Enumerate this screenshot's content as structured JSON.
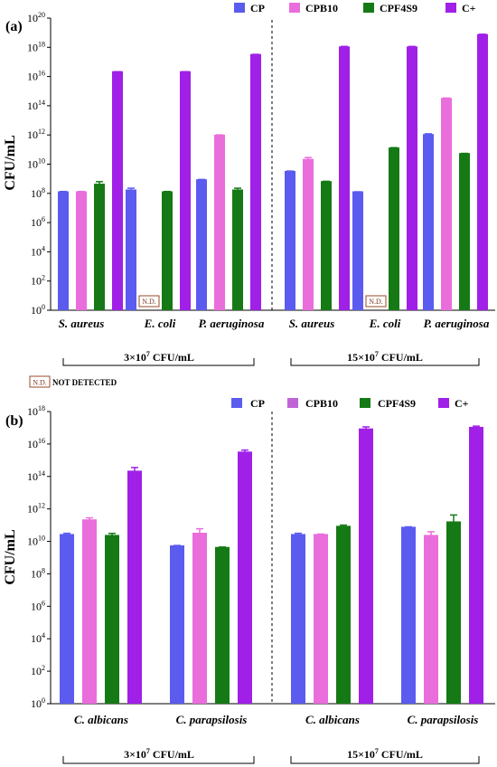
{
  "colors": {
    "CP": "#5b5bef",
    "CPB10": "#ea6ddc",
    "CPF4S9": "#157a15",
    "C+": "#a020e8",
    "nd_border": "#9a4a2a"
  },
  "nd_label": "N.D.",
  "nd_legend": "NOT DETECTED",
  "chart_data": [
    {
      "type": "bar",
      "panel_label": "(a)",
      "ylabel": "CFU/mL",
      "yscale": "log10",
      "ylim": [
        1,
        1e+20
      ],
      "yticks": [
        "10^0",
        "10^2",
        "10^4",
        "10^6",
        "10^8",
        "10^10",
        "10^12",
        "10^14",
        "10^16",
        "10^18",
        "10^20"
      ],
      "legend": [
        "CP",
        "CPB10",
        "CPF4S9",
        "C+"
      ],
      "legend_position": "top-right",
      "groups": [
        {
          "label": "3×10^7 CFU/mL",
          "categories": [
            "S. aureus",
            "E. coli",
            "P. aeruginosa"
          ]
        },
        {
          "label": "15×10^7 CFU/mL",
          "categories": [
            "S. aureus",
            "E. coli",
            "P. aeruginosa"
          ]
        }
      ],
      "categories": [
        "S. aureus",
        "E. coli",
        "P. aeruginosa",
        "S. aureus",
        "E. coli",
        "P. aeruginosa"
      ],
      "series": [
        {
          "name": "CP",
          "values": [
            120000000.0,
            160000000.0,
            800000000.0,
            3000000000.0,
            120000000.0,
            1000000000000.0
          ],
          "err_log": [
            0.05,
            0.15,
            0.05,
            0.05,
            0.03,
            0.08
          ]
        },
        {
          "name": "CPB10",
          "values": [
            120000000.0,
            null,
            900000000000.0,
            20000000000.0,
            null,
            300000000000000.0
          ],
          "err_log": [
            0.05,
            0,
            0.05,
            0.15,
            0,
            0.05
          ]
        },
        {
          "name": "CPF4S9",
          "values": [
            400000000.0,
            120000000.0,
            160000000.0,
            600000000.0,
            120000000000.0,
            50000000000.0
          ],
          "err_log": [
            0.2,
            0.05,
            0.15,
            0.05,
            0.05,
            0.04
          ]
        },
        {
          "name": "C+",
          "values": [
            2e+16,
            2e+16,
            3e+17,
            1e+18,
            1e+18,
            7e+18
          ],
          "err_log": [
            0.03,
            0.03,
            0.04,
            0.06,
            0.06,
            0.05
          ]
        }
      ],
      "not_detected": [
        {
          "series": "CPB10",
          "category_index": 1
        },
        {
          "series": "CPB10",
          "category_index": 4
        }
      ]
    },
    {
      "type": "bar",
      "panel_label": "(b)",
      "ylabel": "CFU/mL",
      "yscale": "log10",
      "ylim": [
        1,
        1e+18
      ],
      "yticks": [
        "10^0",
        "10^2",
        "10^4",
        "10^6",
        "10^8",
        "10^10",
        "10^12",
        "10^14",
        "10^16",
        "10^18"
      ],
      "legend": [
        "CP",
        "CPB10",
        "CPF4S9",
        "C+"
      ],
      "legend_position": "top-right",
      "groups": [
        {
          "label": "3×10^7 CFU/mL",
          "categories": [
            "C. albicans",
            "C. parapsilosis"
          ]
        },
        {
          "label": "15×10^7 CFU/mL",
          "categories": [
            "C. albicans",
            "C. parapsilosis"
          ]
        }
      ],
      "categories": [
        "C. albicans",
        "C. parapsilosis",
        "C. albicans",
        "C. parapsilosis"
      ],
      "series": [
        {
          "name": "CP",
          "values": [
            25000000000.0,
            5000000000.0,
            25000000000.0,
            70000000000.0
          ],
          "err_log": [
            0.1,
            0.05,
            0.1,
            0.05
          ]
        },
        {
          "name": "CPB10",
          "values": [
            200000000000.0,
            30000000000.0,
            25000000000.0,
            22000000000.0
          ],
          "err_log": [
            0.15,
            0.3,
            0.05,
            0.25
          ]
        },
        {
          "name": "CPF4S9",
          "values": [
            22000000000.0,
            4000000000.0,
            80000000000.0,
            150000000000.0
          ],
          "err_log": [
            0.15,
            0.05,
            0.1,
            0.45
          ]
        },
        {
          "name": "C+",
          "values": [
            200000000000000.0,
            3000000000000000.0,
            8e+16,
            1e+17
          ],
          "err_log": [
            0.25,
            0.15,
            0.15,
            0.1
          ]
        }
      ]
    }
  ]
}
